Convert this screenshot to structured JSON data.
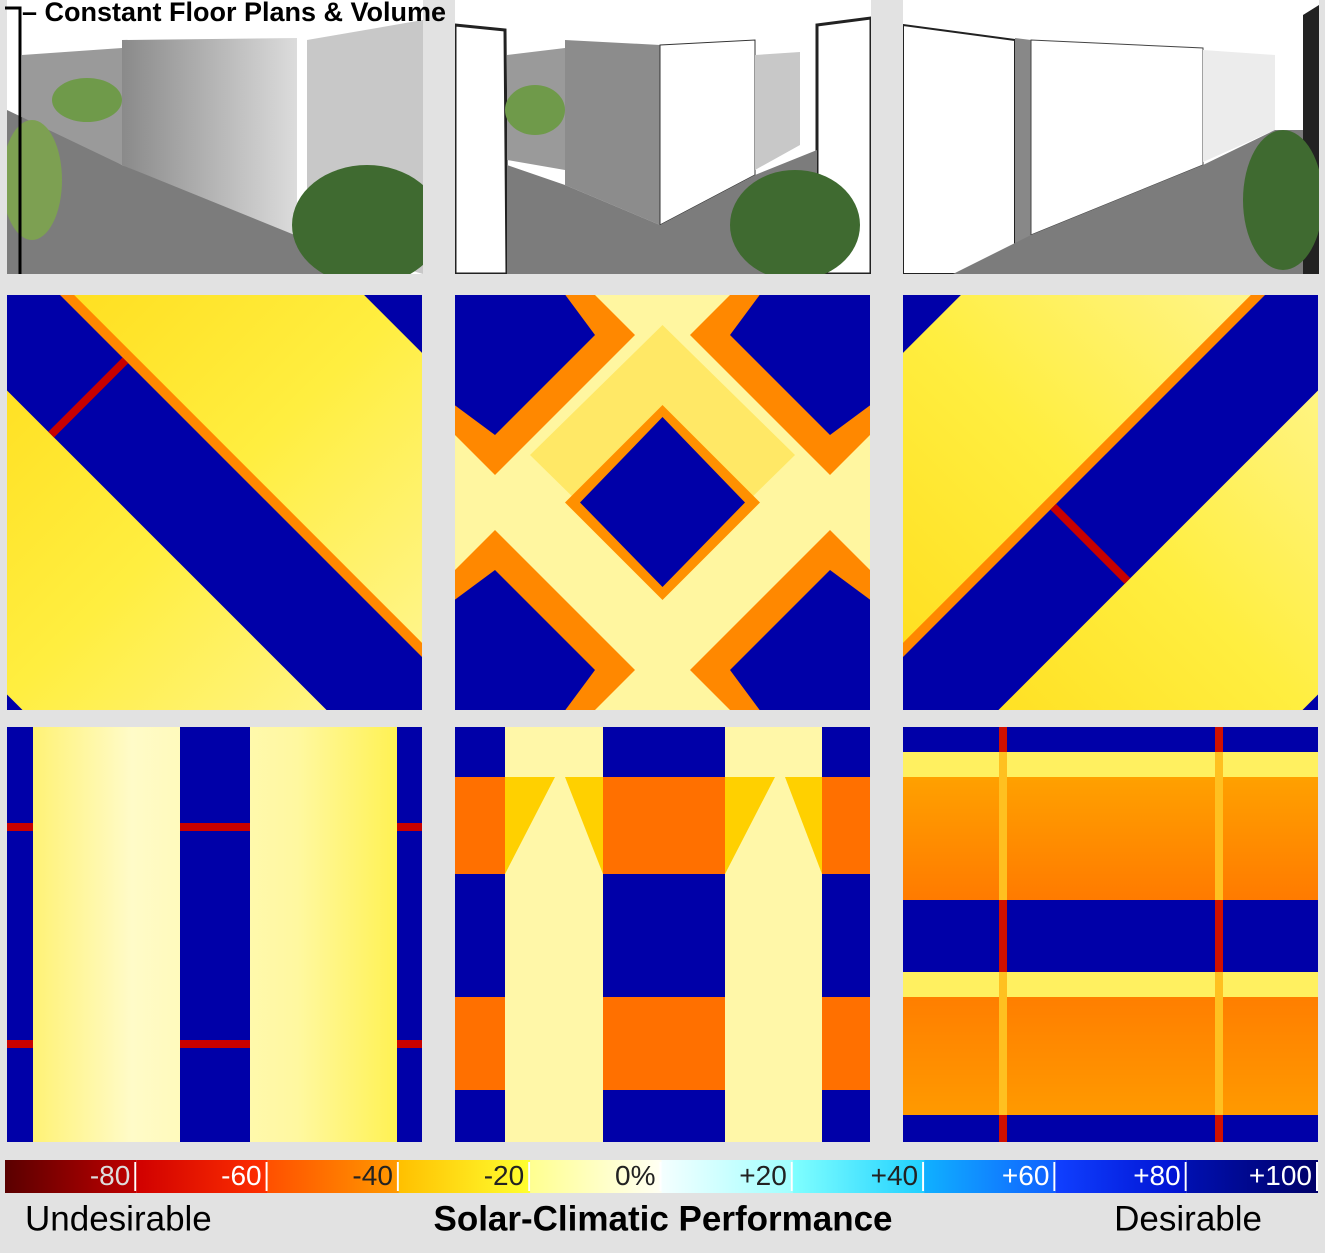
{
  "title": "– Constant Floor Plans & Volume",
  "legend": {
    "labels": [
      "-80",
      "-60",
      "-40",
      "-20",
      "0%",
      "+20",
      "+40",
      "+60",
      "+80",
      "+100"
    ],
    "left": "Undesirable",
    "center": "Solar-Climatic Performance",
    "right": "Desirable"
  }
}
